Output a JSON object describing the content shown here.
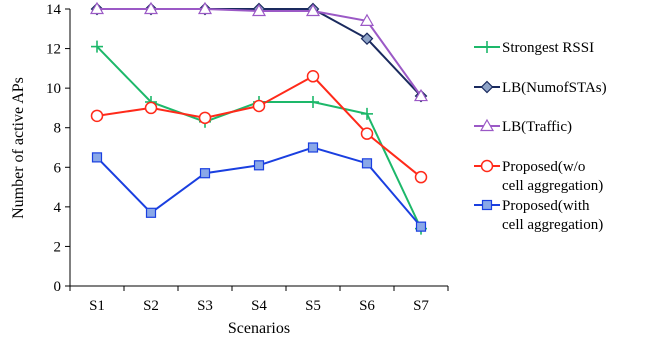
{
  "chart_data": {
    "type": "line",
    "title": "",
    "xlabel": "Scenarios",
    "ylabel": "Number of active APs",
    "categories": [
      "S1",
      "S2",
      "S3",
      "S4",
      "S5",
      "S6",
      "S7"
    ],
    "ylim": [
      0,
      14
    ],
    "yticks": [
      0,
      2,
      4,
      6,
      8,
      10,
      12,
      14
    ],
    "grid": false,
    "legend_position": "right",
    "series": [
      {
        "name": "Strongest RSSI",
        "color": "#1db86a",
        "marker": "plus",
        "values": [
          12.1,
          9.3,
          8.3,
          9.3,
          9.3,
          8.7,
          2.9
        ]
      },
      {
        "name": "LB(NumofSTAs)",
        "color": "#1a2a5e",
        "marker": "diamond",
        "values": [
          14.0,
          14.0,
          14.0,
          14.0,
          14.0,
          12.5,
          9.6
        ]
      },
      {
        "name": "LB(Traffic)",
        "color": "#9b59c6",
        "marker": "triangle",
        "values": [
          14.0,
          14.0,
          14.0,
          13.9,
          13.9,
          13.4,
          9.6
        ]
      },
      {
        "name": "Proposed(w/o cell aggregation)",
        "label_lines": [
          "Proposed(w/o",
          "cell aggregation)"
        ],
        "color": "#ff2a1a",
        "marker": "circle",
        "values": [
          8.6,
          9.0,
          8.5,
          9.1,
          10.6,
          7.7,
          5.5
        ]
      },
      {
        "name": "Proposed(with cell aggregation)",
        "label_lines": [
          "Proposed(with",
          "cell aggregation)"
        ],
        "color": "#1a3fe0",
        "marker": "square",
        "values": [
          6.5,
          3.7,
          5.7,
          6.1,
          7.0,
          6.2,
          3.0
        ]
      }
    ]
  }
}
